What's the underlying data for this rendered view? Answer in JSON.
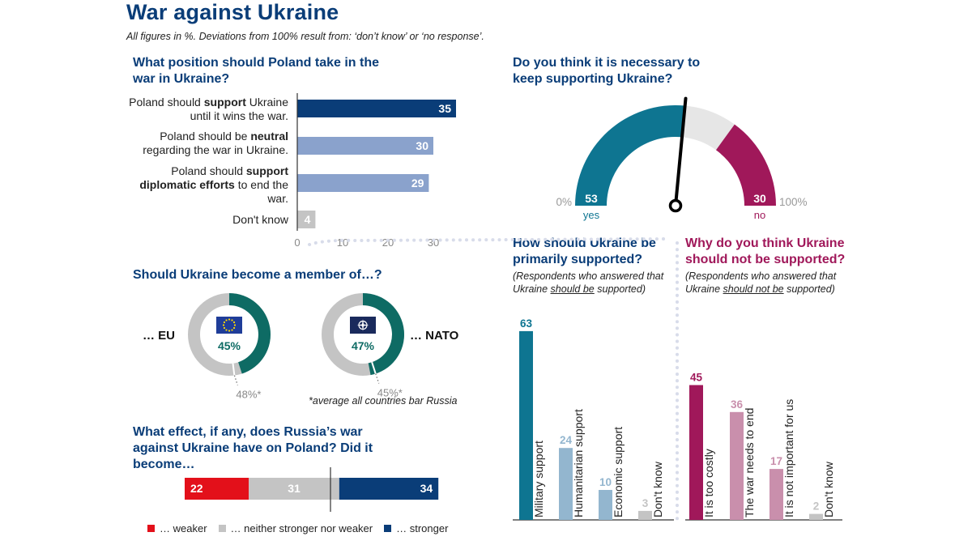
{
  "header": {
    "title": "War against Ukraine",
    "subtitle": "All figures in %. Deviations from 100% result from: ‘don’t know’ or ‘no response’."
  },
  "colors": {
    "navy": "#0a3d78",
    "light_blue": "#8aa2cc",
    "gray": "#c4c4c4",
    "teal": "#0e7591",
    "teal_green": "#0e6b64",
    "berry": "#a0185a",
    "pink": "#c98fac",
    "red": "#e3101a",
    "pale_blue": "#93b6cf"
  },
  "chart_data": [
    {
      "id": "position",
      "type": "bar",
      "orientation": "horizontal",
      "title": "What position should Poland take in the war in Ukraine?",
      "categories": [
        [
          "Poland should ",
          "support",
          " Ukraine until it wins the war."
        ],
        [
          "Poland should be ",
          "neutral",
          " regarding the war in Ukraine."
        ],
        [
          "Poland should ",
          "support diplomatic efforts",
          " to end the war."
        ],
        [
          "Don't know",
          "",
          ""
        ]
      ],
      "values": [
        35,
        30,
        29,
        4
      ],
      "xticks": [
        "0",
        "10",
        "20",
        "30"
      ],
      "xlim": [
        0,
        35
      ]
    },
    {
      "id": "support_gauge",
      "type": "pie",
      "title": "Do you think it is necessary to keep supporting Ukraine?",
      "yes": 53,
      "no": 30,
      "yes_label": "yes",
      "no_label": "no",
      "min_label": "0%",
      "max_label": "100%"
    },
    {
      "id": "membership",
      "type": "pie",
      "title": "Should Ukraine become a member of…?",
      "items": [
        {
          "label": "… EU",
          "value": 45,
          "value_label": "45%",
          "average": 48,
          "average_label": "48%*",
          "flag": "eu-flag-icon"
        },
        {
          "label": "… NATO",
          "value": 47,
          "value_label": "47%",
          "average": 45,
          "average_label": "45%*",
          "flag": "nato-flag-icon"
        }
      ],
      "footnote": "*average all countries bar Russia"
    },
    {
      "id": "effect",
      "type": "bar",
      "orientation": "stacked",
      "title": "What effect, if any, does Russia’s war against Ukraine have on Poland? Did it become…",
      "series": [
        {
          "name": "… weaker",
          "value": 22
        },
        {
          "name": "… neither stronger nor weaker",
          "value": 31
        },
        {
          "name": "… stronger",
          "value": 34
        }
      ]
    },
    {
      "id": "how_support",
      "type": "bar",
      "title": "How should Ukraine be primarily supported?",
      "note": [
        "(Respondents who answered that",
        "Ukraine ",
        "should be",
        " supported)"
      ],
      "categories": [
        "Military support",
        "Humanitarian support",
        "Economic support",
        "Don't know"
      ],
      "values": [
        63,
        24,
        10,
        3
      ]
    },
    {
      "id": "why_not",
      "type": "bar",
      "title": "Why do you think Ukraine should not be supported?",
      "note": [
        "(Respondents who answered that",
        "Ukraine ",
        "should not be",
        " supported)"
      ],
      "categories": [
        "It is too costly",
        "The war needs to end",
        "It is not important for us",
        "Don't know"
      ],
      "values": [
        45,
        36,
        17,
        2
      ]
    }
  ]
}
